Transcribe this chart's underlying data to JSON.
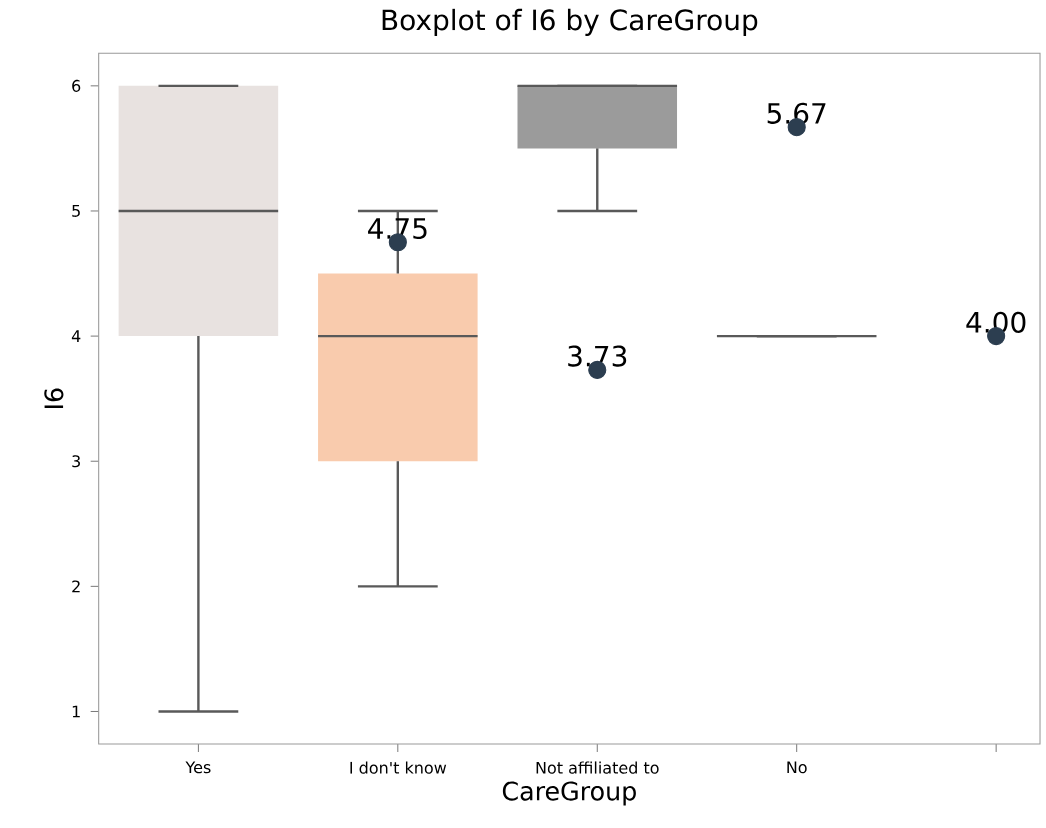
{
  "chart_data": {
    "type": "box",
    "title": "Boxplot of I6 by CareGroup",
    "xlabel": "CareGroup",
    "ylabel": "I6",
    "categories": [
      "Yes",
      "I don't know",
      "Not affiliated to",
      "No",
      null
    ],
    "ylim": [
      0.74,
      6.26
    ],
    "yticks": [
      1,
      2,
      3,
      4,
      5,
      6
    ],
    "grid": false,
    "series": [
      {
        "colors": [
          "#e8e2e0",
          "#f9cbad",
          "#9b9b9b",
          null,
          null
        ],
        "boxes": [
          {
            "low": 1,
            "q1": 4,
            "median": 5,
            "q3": 6,
            "high": 6
          },
          {
            "low": 2,
            "q1": 3,
            "median": 4,
            "q3": 4.5,
            "high": 5
          },
          {
            "low": 5,
            "q1": 5.5,
            "median": 6,
            "q3": 6,
            "high": 6
          },
          {
            "low": 4,
            "q1": 4,
            "median": 4,
            "q3": 4,
            "high": 4
          },
          null
        ]
      },
      {
        "type": "scatter",
        "color": "#2c3e50",
        "values": [
          null,
          4.75,
          3.73,
          5.67,
          4.0
        ],
        "value_labels": [
          null,
          "4.75",
          "3.73",
          "5.67",
          "4.00"
        ]
      }
    ]
  }
}
